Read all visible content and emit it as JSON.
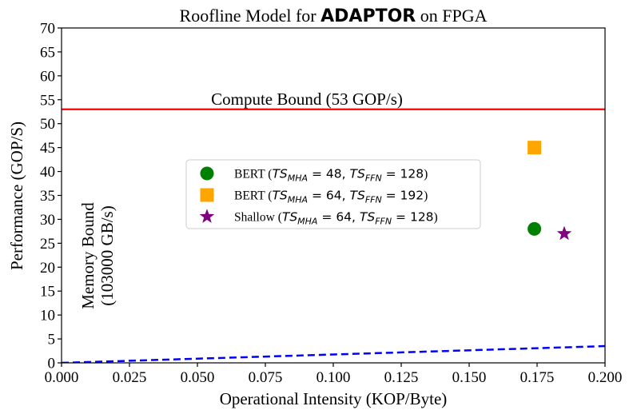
{
  "chart_data": {
    "type": "scatter",
    "title": {
      "prefix": "Roofline Model for ",
      "bold": "ADAPTOR",
      "suffix": " on FPGA"
    },
    "xlabel": "Operational Intensity (KOP/Byte)",
    "ylabel": "Performance (GOP/S)",
    "xlim": [
      0,
      0.2
    ],
    "ylim": [
      0,
      70
    ],
    "x_ticks": [
      0,
      0.025,
      0.05,
      0.075,
      0.1,
      0.125,
      0.15,
      0.175,
      0.2
    ],
    "x_tick_labels": [
      "0.000",
      "0.025",
      "0.050",
      "0.075",
      "0.100",
      "0.125",
      "0.150",
      "0.175",
      "0.200"
    ],
    "y_ticks": [
      0,
      5,
      10,
      15,
      20,
      25,
      30,
      35,
      40,
      45,
      50,
      55,
      60,
      65,
      70
    ],
    "y_tick_labels": [
      "0",
      "5",
      "10",
      "15",
      "20",
      "25",
      "30",
      "35",
      "40",
      "45",
      "50",
      "55",
      "60",
      "65",
      "70"
    ],
    "compute_bound": {
      "value": 53,
      "label": "Compute Bound (53 GOP/s)",
      "color": "#ff0000"
    },
    "memory_bound": {
      "slope": 17.5,
      "label_line1": "Memory Bound",
      "label_line2": "(103000 GB/s)",
      "color": "#0000ff"
    },
    "series": [
      {
        "name": "BERT",
        "mha_value": "48",
        "ffn_value": "128",
        "marker": "circle",
        "color": "#008000",
        "x": 0.174,
        "y": 28
      },
      {
        "name": "BERT",
        "mha_value": "64",
        "ffn_value": "192",
        "marker": "square",
        "color": "#ffa500",
        "x": 0.174,
        "y": 45
      },
      {
        "name": "Shallow",
        "mha_value": "64",
        "ffn_value": "128",
        "marker": "star",
        "color": "#800080",
        "x": 0.185,
        "y": 27
      }
    ],
    "legend": {
      "position": "center-left",
      "ts_symbol": "TS",
      "mha_sub": "MHA",
      "ffn_sub": "FFN"
    }
  }
}
